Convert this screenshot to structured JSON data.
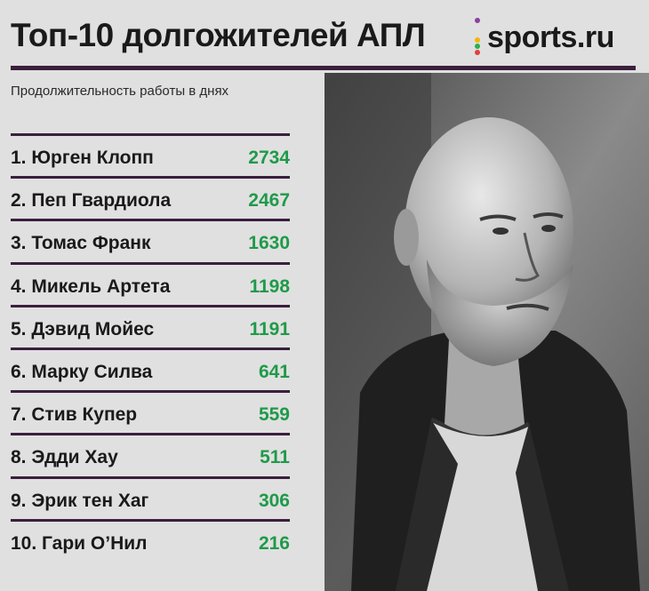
{
  "header": {
    "title": "Топ-10 долгожителей АПЛ",
    "logo_text": "sports.ru",
    "subtitle": "Продолжительность работы в днях"
  },
  "colors": {
    "rule": "#3a1f3d",
    "value": "#1f9a49",
    "logo_dots": [
      "#8b3fa0",
      "#f2b705",
      "#2bb24c",
      "#e2403a",
      "#3aa0e0"
    ]
  },
  "photo": {
    "icon": "coach-portrait-photo"
  },
  "ranking": [
    {
      "label": "1. Юрген Клопп",
      "value": "2734"
    },
    {
      "label": "2. Пеп Гвардиола",
      "value": "2467"
    },
    {
      "label": "3. Томас Франк",
      "value": "1630"
    },
    {
      "label": "4. Микель Артета",
      "value": "1198"
    },
    {
      "label": "5. Дэвид Мойес",
      "value": "1191"
    },
    {
      "label": "6. Марку Силва",
      "value": "641"
    },
    {
      "label": "7. Стив Купер",
      "value": "559"
    },
    {
      "label": "8. Эдди Хау",
      "value": "511"
    },
    {
      "label": "9. Эрик тен Хаг",
      "value": "306"
    },
    {
      "label": "10. Гари О’Нил",
      "value": "216"
    }
  ]
}
